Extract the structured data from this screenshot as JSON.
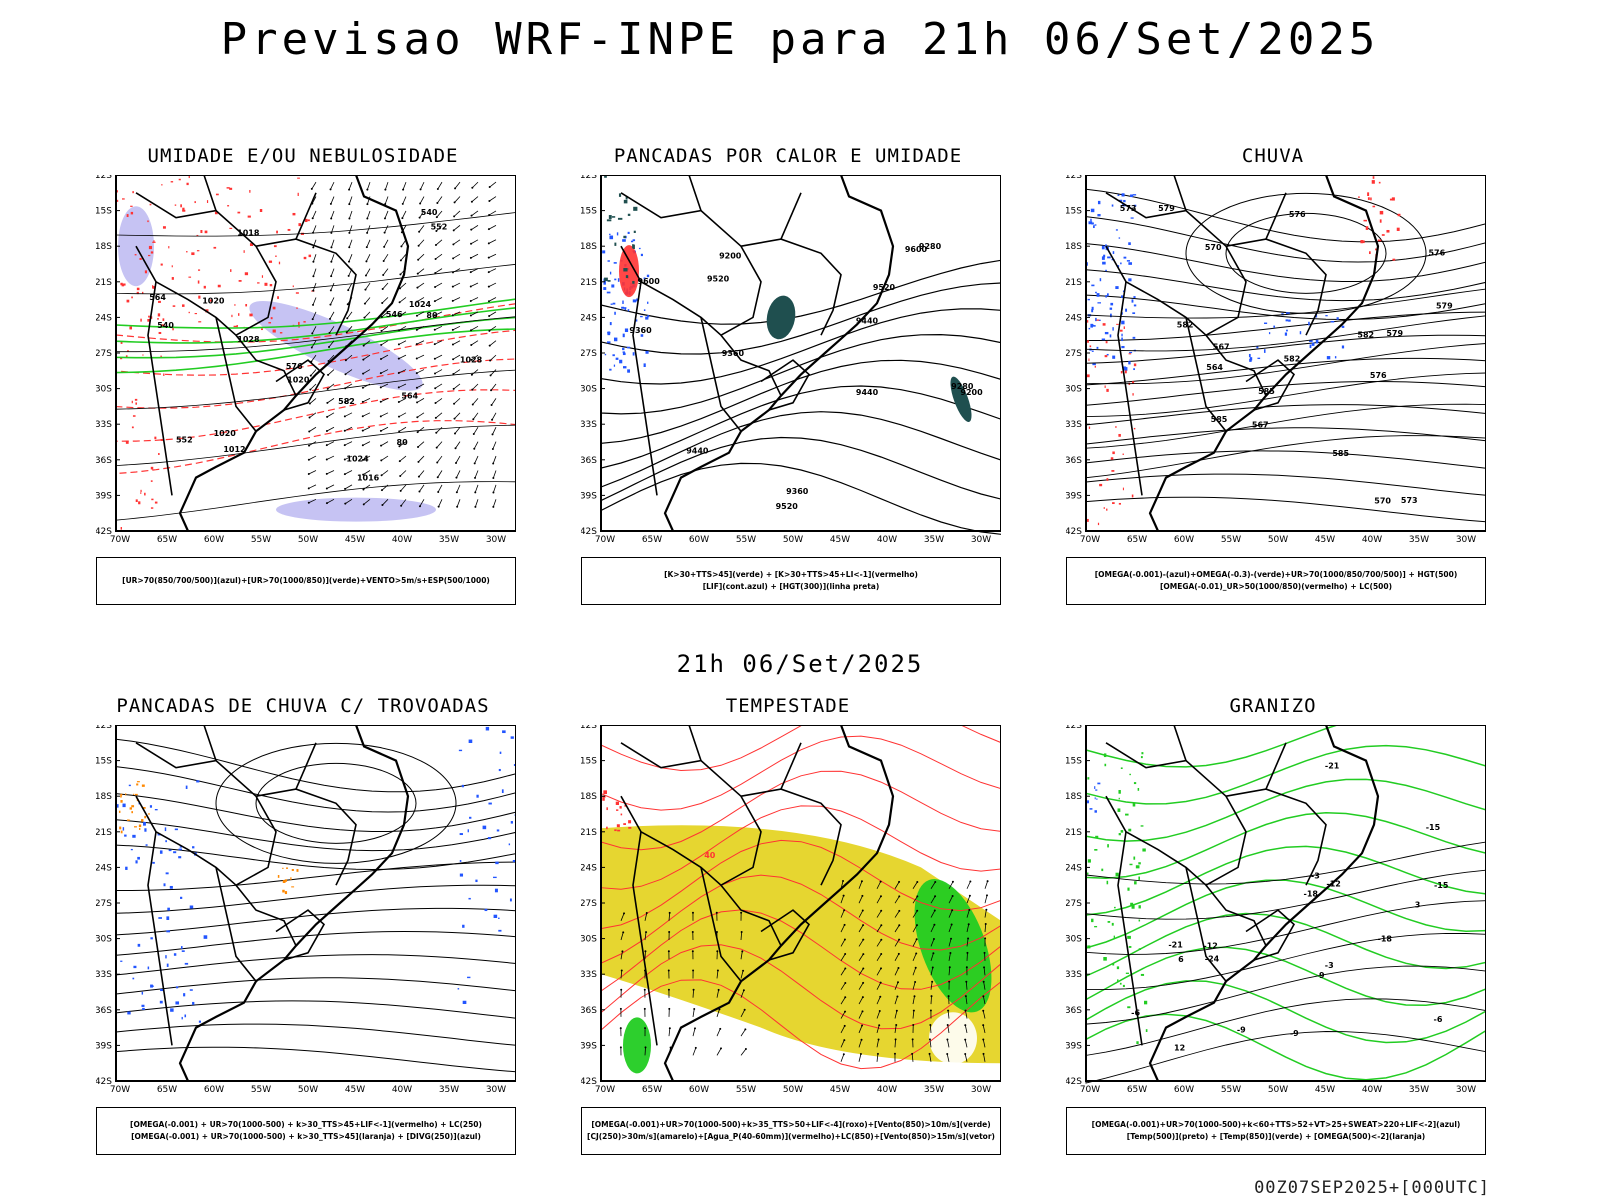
{
  "page": {
    "title": "Previsao WRF-INPE  para 21h 06/Set/2025",
    "mid_date": "21h 06/Set/2025",
    "run_label": "00Z07SEP2025+[000UTC]"
  },
  "axes": {
    "lat_ticks": [
      "12S",
      "15S",
      "18S",
      "21S",
      "24S",
      "27S",
      "30S",
      "33S",
      "36S",
      "39S",
      "42S"
    ],
    "lon_ticks": [
      "70W",
      "65W",
      "60W",
      "55W",
      "50W",
      "45W",
      "40W",
      "35W",
      "30W"
    ]
  },
  "colors": {
    "humidity_blue": "#b8b4f0",
    "green": "#22cc22",
    "red": "#ff3333",
    "blue": "#2255ff",
    "yellow": "#e6d630",
    "dark_teal": "#1f4f4f",
    "orange": "#ff8800"
  },
  "panels": [
    {
      "id": "umidade",
      "title": "UMIDADE E/OU NEBULOSIDADE",
      "legend": [
        "[UR>70(850/700/500)](azul)+[UR>70(1000/850)](verde)+VENTO>5m/s+ESP(500/1000)"
      ],
      "labels": [
        "1016",
        "1018",
        "1020",
        "1020",
        "1024",
        "1024",
        "1028",
        "1028",
        "1020",
        "1012",
        "552",
        "564",
        "576",
        "582",
        "546",
        "540",
        "540",
        "552",
        "564",
        "80",
        "80"
      ]
    },
    {
      "id": "pancadas-calor",
      "title": "PANCADAS POR CALOR E UMIDADE",
      "legend": [
        "[K>30+TTS>45](verde) + [K>30+TTS>45+LI<-1](vermelho)",
        "[LIF](cont.azul) + [HGT(300)](linha preta)"
      ],
      "labels": [
        "9600",
        "9520",
        "9440",
        "9360",
        "9600",
        "9520",
        "9440",
        "9360",
        "9280",
        "9200",
        "9280",
        "9200",
        "9520",
        "9440",
        "9360"
      ]
    },
    {
      "id": "chuva",
      "title": "CHUVA",
      "legend": [
        "[OMEGA(-0.001)-(azul)+OMEGA(-0.3)-(verde)+UR>70(1000/850/700/500)] + HGT(500)",
        "[OMEGA(-0.01)_UR>50(1000/850)(vermelho) + LC(500)"
      ],
      "labels": [
        "585",
        "582",
        "579",
        "576",
        "573",
        "570",
        "567",
        "564",
        "585",
        "582",
        "579",
        "576",
        "573",
        "570",
        "567",
        "585",
        "582",
        "579",
        "576"
      ]
    },
    {
      "id": "trovoadas",
      "title": "PANCADAS DE CHUVA C/ TROVOADAS",
      "legend": [
        "[OMEGA(-0.001) + UR>70(1000-500) + k>30_TTS>45+LIF<-1](vermelho) + LC(250)",
        "[OMEGA(-0.001) + UR>70(1000-500) + k>30_TTS>45](laranja) + [DIVG(250)](azul)"
      ],
      "labels": []
    },
    {
      "id": "tempestade",
      "title": "TEMPESTADE",
      "legend": [
        "[OMEGA(-0.001)+UR>70(1000-500)+k>35_TTS>50+LIF<-4](roxo)+[Vento(850)>10m/s](verde)",
        "[CJ(250)>30m/s](amarelo)+[Agua_P(40-60mm)](vermelho)+LC(850)+[Vento(850)>15m/s](vetor)"
      ],
      "labels": [
        "40"
      ]
    },
    {
      "id": "granizo",
      "title": "GRANIZO",
      "legend": [
        "[OMEGA(-0.001)+UR>70(1000-500)+k<60+TTS>52+VT>25+SWEAT>220+LIF<-2](azul)",
        "[Temp(500)](preto) + [Temp(850)](verde) + [OMEGA(500)<-2](laranja)"
      ],
      "labels": [
        "-3",
        "-6",
        "-9",
        "-12",
        "-15",
        "-18",
        "-21",
        "-24",
        "-3",
        "-6",
        "-9",
        "-12",
        "-15",
        "-18",
        "-21",
        "3",
        "6",
        "9",
        "12"
      ]
    }
  ]
}
